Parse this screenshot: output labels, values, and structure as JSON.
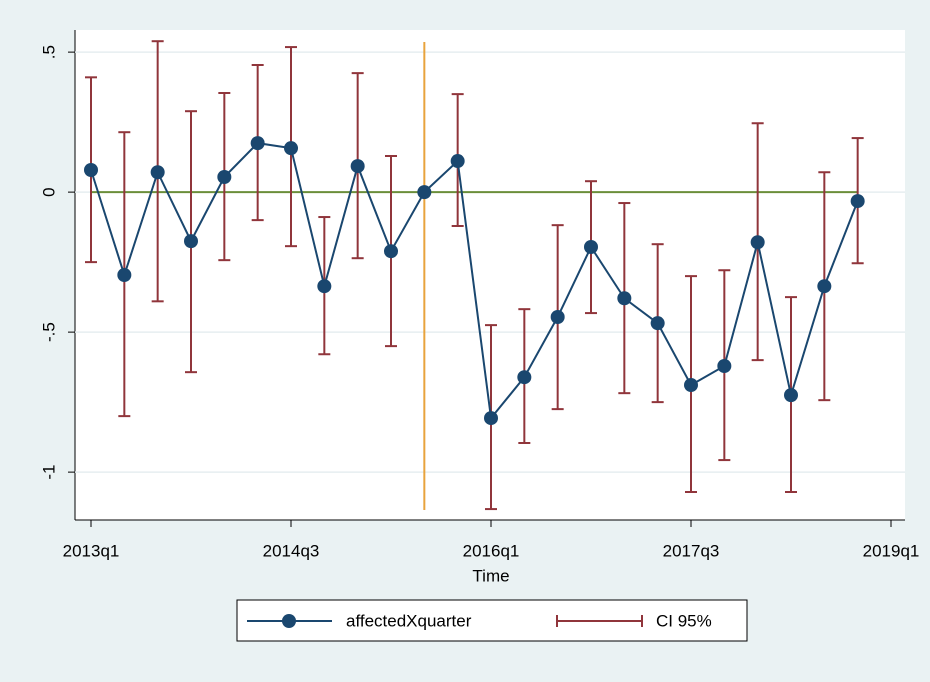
{
  "chart_data": {
    "type": "line",
    "x_label": "Time",
    "x": [
      212,
      213,
      214,
      215,
      216,
      217,
      218,
      219,
      220,
      221,
      222,
      223,
      224,
      225,
      226,
      227,
      228,
      229,
      230,
      231,
      232,
      233,
      234,
      235
    ],
    "series": [
      {
        "name": "affectedXquarter",
        "color": "#1a476f",
        "values": [
          0.079,
          -0.296,
          0.071,
          -0.175,
          0.054,
          0.175,
          0.157,
          -0.336,
          0.093,
          -0.211,
          0,
          0.111,
          -0.807,
          -0.661,
          -0.446,
          -0.196,
          -0.379,
          -0.468,
          -0.689,
          -0.621,
          -0.179,
          -0.725,
          -0.336,
          -0.032
        ]
      },
      {
        "name": "CI 95%",
        "color": "#90353b",
        "lower": [
          -0.25,
          -0.8,
          -0.39,
          -0.643,
          -0.243,
          -0.1,
          -0.193,
          -0.579,
          -0.236,
          -0.55,
          null,
          -0.121,
          -1.132,
          -0.896,
          -0.775,
          -0.432,
          -0.718,
          -0.75,
          -1.071,
          -0.957,
          -0.6,
          -1.071,
          -0.743,
          -0.254
        ],
        "upper": [
          0.41,
          0.214,
          0.539,
          0.289,
          0.354,
          0.454,
          0.518,
          -0.089,
          0.425,
          0.129,
          null,
          0.35,
          -0.475,
          -0.418,
          -0.118,
          0.039,
          -0.039,
          -0.186,
          -0.3,
          -0.279,
          0.246,
          -0.375,
          0.071,
          0.193
        ]
      }
    ],
    "reference_line": {
      "value": 0,
      "color": "#6b8e3a"
    },
    "event_line": {
      "value": 222,
      "color": "#e8a33d"
    },
    "xlim": [
      211.52,
      236.42
    ],
    "xticks": [
      {
        "value": 212,
        "label": "2013q1"
      },
      {
        "value": 218,
        "label": "2014q3"
      },
      {
        "value": 224,
        "label": "2016q1"
      },
      {
        "value": 230,
        "label": "2017q3"
      },
      {
        "value": 236,
        "label": "2019q1"
      }
    ],
    "ylim": [
      -1.171,
      0.579
    ],
    "yticks": [
      -1,
      {
        "value": -0.5,
        "label": "-.5"
      },
      0,
      {
        "value": 0.5,
        "label": ".5"
      }
    ],
    "grid": true
  }
}
